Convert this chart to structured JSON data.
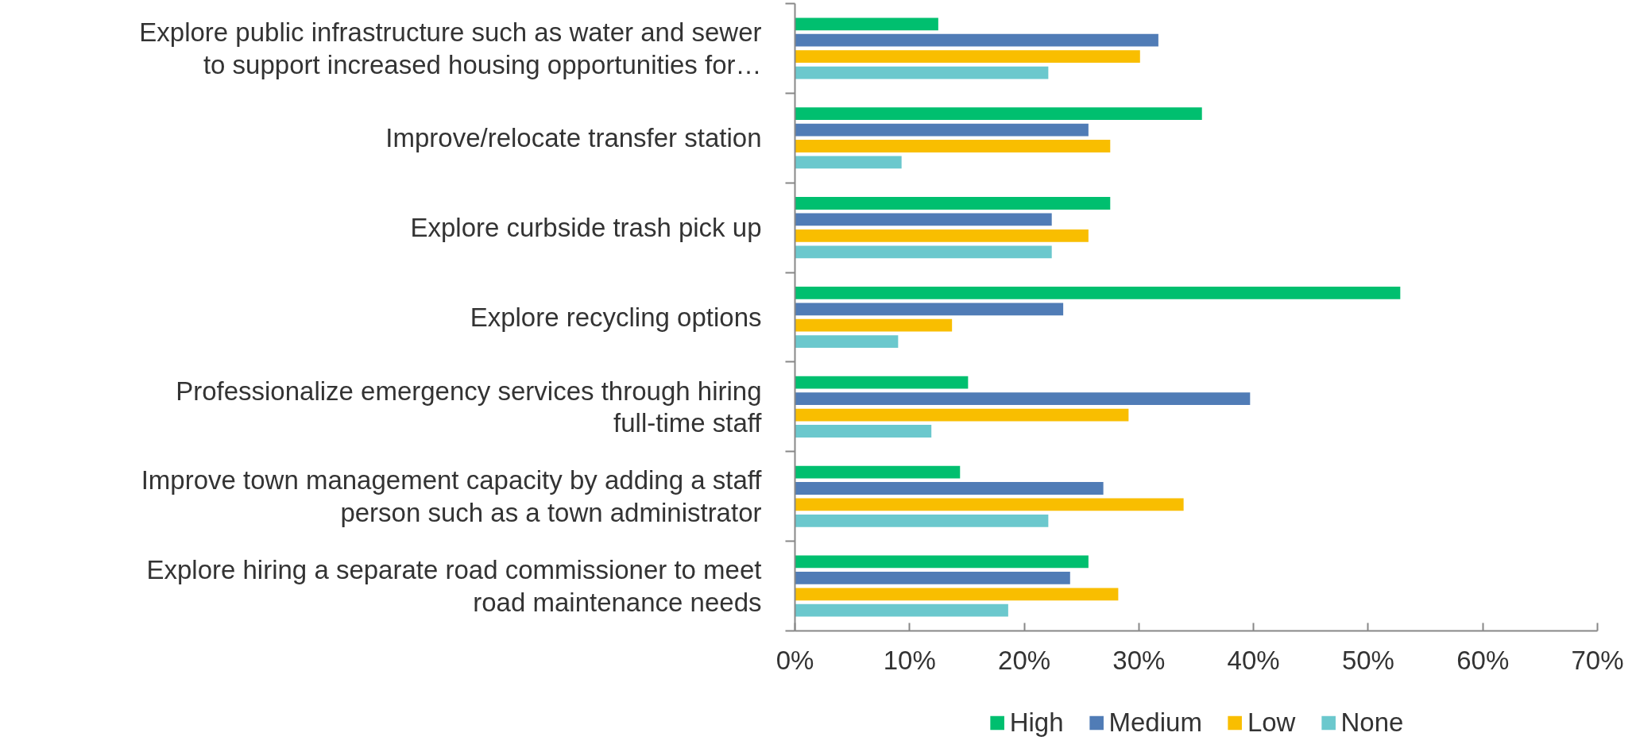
{
  "chart_data": {
    "type": "bar",
    "orientation": "horizontal",
    "categories": [
      "Explore public infrastructure such as water and sewer to support increased housing opportunities for…",
      "Improve/relocate transfer station",
      "Explore curbside trash pick up",
      "Explore recycling options",
      "Professionalize emergency services through hiring full-time staff",
      "Improve town management capacity by adding a staff person such as a town administrator",
      "Explore hiring a separate road commissioner to meet road maintenance needs"
    ],
    "series": [
      {
        "name": "High",
        "color": "#00bf6f",
        "values": [
          12.5,
          35.5,
          27.5,
          52.8,
          15.1,
          14.4,
          25.6
        ]
      },
      {
        "name": "Medium",
        "color": "#507cb6",
        "values": [
          31.7,
          25.6,
          22.4,
          23.4,
          39.7,
          26.9,
          24.0
        ]
      },
      {
        "name": "Low",
        "color": "#f9be00",
        "values": [
          30.1,
          27.5,
          25.6,
          13.7,
          29.1,
          33.9,
          28.2
        ]
      },
      {
        "name": "None",
        "color": "#6bc8cd",
        "values": [
          22.1,
          9.3,
          22.4,
          9.0,
          11.9,
          22.1,
          18.6
        ]
      }
    ],
    "xlim": [
      0,
      70
    ],
    "xticks": [
      {
        "value": 0,
        "label": "0%"
      },
      {
        "value": 10,
        "label": "10%"
      },
      {
        "value": 20,
        "label": "20%"
      },
      {
        "value": 30,
        "label": "30%"
      },
      {
        "value": 40,
        "label": "40%"
      },
      {
        "value": 50,
        "label": "50%"
      },
      {
        "value": 60,
        "label": "60%"
      },
      {
        "value": 70,
        "label": "70%"
      }
    ],
    "grid": false,
    "legend": "bottom"
  }
}
